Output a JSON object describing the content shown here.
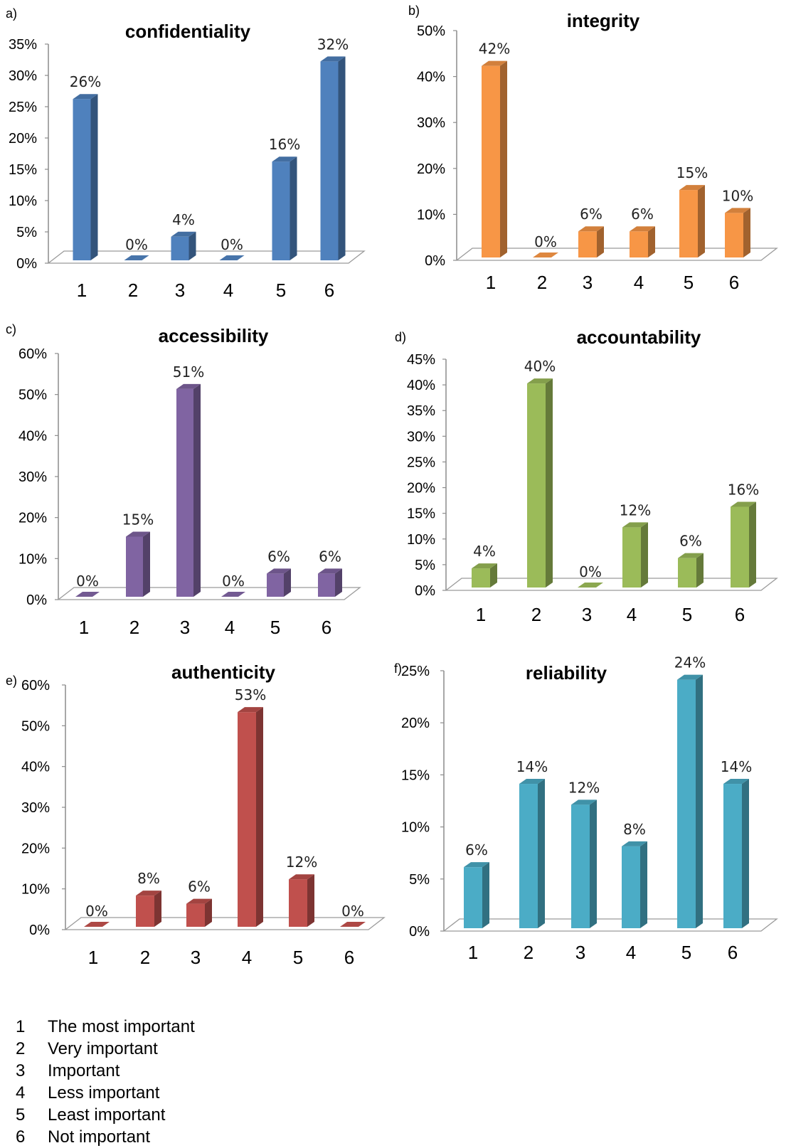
{
  "chart_data": [
    {
      "type": "bar",
      "panel": "a)",
      "title": "confidentiality",
      "categories": [
        "1",
        "2",
        "3",
        "4",
        "5",
        "6"
      ],
      "values": [
        26,
        0,
        4,
        0,
        16,
        32
      ],
      "data_labels": [
        "26%",
        "0%",
        "4%",
        "0%",
        "16%",
        "32%"
      ],
      "yticks": [
        "0%",
        "5%",
        "10%",
        "15%",
        "20%",
        "25%",
        "30%",
        "35%"
      ],
      "ylim": [
        0,
        35
      ],
      "color": "#4f81bd"
    },
    {
      "type": "bar",
      "panel": "b)",
      "title": "integrity",
      "categories": [
        "1",
        "2",
        "3",
        "4",
        "5",
        "6"
      ],
      "values": [
        42,
        0,
        6,
        6,
        15,
        10
      ],
      "data_labels": [
        "42%",
        "0%",
        "6%",
        "6%",
        "15%",
        "10%"
      ],
      "yticks": [
        "0%",
        "10%",
        "20%",
        "30%",
        "40%",
        "50%"
      ],
      "ylim": [
        0,
        50
      ],
      "color": "#f79646"
    },
    {
      "type": "bar",
      "panel": "c)",
      "title": "accessibility",
      "categories": [
        "1",
        "2",
        "3",
        "4",
        "5",
        "6"
      ],
      "values": [
        0,
        15,
        51,
        0,
        6,
        6
      ],
      "data_labels": [
        "0%",
        "15%",
        "51%",
        "0%",
        "6%",
        "6%"
      ],
      "yticks": [
        "0%",
        "10%",
        "20%",
        "30%",
        "40%",
        "50%",
        "60%"
      ],
      "ylim": [
        0,
        60
      ],
      "color": "#8064a2"
    },
    {
      "type": "bar",
      "panel": "d)",
      "title": "accountability",
      "categories": [
        "1",
        "2",
        "3",
        "4",
        "5",
        "6"
      ],
      "values": [
        4,
        40,
        0,
        12,
        6,
        16
      ],
      "data_labels": [
        "4%",
        "40%",
        "0%",
        "12%",
        "6%",
        "16%"
      ],
      "yticks": [
        "0%",
        "5%",
        "10%",
        "15%",
        "20%",
        "25%",
        "30%",
        "35%",
        "40%",
        "45%"
      ],
      "ylim": [
        0,
        45
      ],
      "color": "#9bbb59"
    },
    {
      "type": "bar",
      "panel": "e)",
      "title": "authenticity",
      "categories": [
        "1",
        "2",
        "3",
        "4",
        "5",
        "6"
      ],
      "values": [
        0,
        8,
        6,
        53,
        12,
        0
      ],
      "data_labels": [
        "0%",
        "8%",
        "6%",
        "53%",
        "12%",
        "0%"
      ],
      "yticks": [
        "0%",
        "10%",
        "20%",
        "30%",
        "40%",
        "50%",
        "60%"
      ],
      "ylim": [
        0,
        60
      ],
      "color": "#c0504d"
    },
    {
      "type": "bar",
      "panel": "f)",
      "title": "reliability",
      "categories": [
        "1",
        "2",
        "3",
        "4",
        "5",
        "6"
      ],
      "values": [
        6,
        14,
        12,
        8,
        24,
        14
      ],
      "data_labels": [
        "6%",
        "14%",
        "12%",
        "8%",
        "24%",
        "14%"
      ],
      "yticks": [
        "0%",
        "5%",
        "10%",
        "15%",
        "20%",
        "25%"
      ],
      "ylim": [
        0,
        25
      ],
      "color": "#4bacc6"
    }
  ],
  "legend": [
    {
      "key": "1",
      "label": "The most important"
    },
    {
      "key": "2",
      "label": "Very important"
    },
    {
      "key": "3",
      "label": "Important"
    },
    {
      "key": "4",
      "label": "Less important"
    },
    {
      "key": "5",
      "label": "Least important"
    },
    {
      "key": "6",
      "label": "Not important"
    }
  ]
}
